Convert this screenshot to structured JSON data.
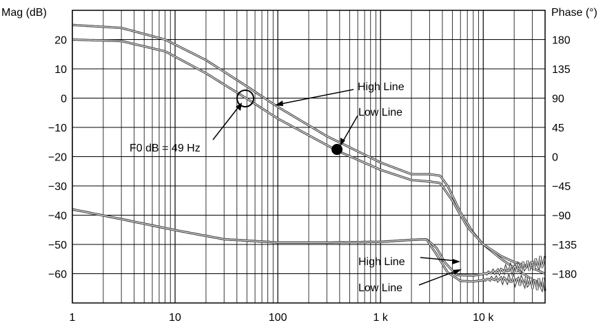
{
  "chart_data": {
    "type": "line",
    "title": "",
    "left_axis": {
      "label": "Mag (dB)",
      "ylim": [
        -70,
        30
      ],
      "ticks": [
        "20",
        "10",
        "0",
        "−10",
        "−20",
        "−30",
        "−40",
        "−50",
        "−60"
      ]
    },
    "right_axis": {
      "label": "Phase (°)",
      "ylim": [
        -225,
        225
      ],
      "ticks": [
        "180",
        "135",
        "90",
        "45",
        "0",
        "−45",
        "−90",
        "−135",
        "−180"
      ]
    },
    "x_axis": {
      "scale": "log",
      "xlim": [
        1,
        40000
      ],
      "ticks": [
        "1",
        "10",
        "100",
        "1 k",
        "10 k"
      ]
    },
    "grid": true,
    "series": [
      {
        "name": "High Line",
        "quantity": "magnitude",
        "points": [
          [
            1,
            25
          ],
          [
            3,
            24
          ],
          [
            8,
            20
          ],
          [
            20,
            13
          ],
          [
            50,
            4
          ],
          [
            100,
            -3
          ],
          [
            300,
            -13
          ],
          [
            1000,
            -22
          ],
          [
            2000,
            -26
          ],
          [
            3000,
            -26
          ],
          [
            3800,
            -26.5
          ],
          [
            4500,
            -30
          ],
          [
            6000,
            -39
          ],
          [
            8000,
            -46
          ],
          [
            10000,
            -50
          ],
          [
            15000,
            -55
          ],
          [
            20000,
            -58
          ],
          [
            30000,
            -62
          ],
          [
            40000,
            -64
          ]
        ]
      },
      {
        "name": "Low Line",
        "quantity": "magnitude",
        "points": [
          [
            1,
            20
          ],
          [
            3,
            19.5
          ],
          [
            8,
            16
          ],
          [
            20,
            8.5
          ],
          [
            49,
            0
          ],
          [
            100,
            -7
          ],
          [
            380,
            -18
          ],
          [
            1000,
            -24.5
          ],
          [
            2000,
            -28
          ],
          [
            3000,
            -28.5
          ],
          [
            3800,
            -29
          ],
          [
            5000,
            -35
          ],
          [
            7000,
            -44
          ],
          [
            10000,
            -50
          ],
          [
            15000,
            -54
          ],
          [
            20000,
            -56
          ],
          [
            30000,
            -58
          ],
          [
            40000,
            -60
          ]
        ]
      },
      {
        "name": "High Line",
        "quantity": "phase",
        "points": [
          [
            1,
            -81
          ],
          [
            3,
            -96
          ],
          [
            10,
            -113
          ],
          [
            30,
            -127
          ],
          [
            100,
            -132
          ],
          [
            300,
            -132
          ],
          [
            1000,
            -131
          ],
          [
            2000,
            -128
          ],
          [
            2800,
            -127
          ],
          [
            3500,
            -140
          ],
          [
            4200,
            -162
          ],
          [
            5500,
            -182
          ],
          [
            8000,
            -183
          ],
          [
            12000,
            -178
          ],
          [
            20000,
            -172
          ],
          [
            30000,
            -166
          ],
          [
            40000,
            -162
          ]
        ]
      },
      {
        "name": "Low Line",
        "quantity": "phase",
        "points": [
          [
            1,
            -81
          ],
          [
            3,
            -96
          ],
          [
            10,
            -113
          ],
          [
            30,
            -127
          ],
          [
            100,
            -132
          ],
          [
            300,
            -132
          ],
          [
            1000,
            -131
          ],
          [
            2000,
            -128
          ],
          [
            2800,
            -127
          ],
          [
            3500,
            -150
          ],
          [
            4500,
            -178
          ],
          [
            6000,
            -191
          ],
          [
            8000,
            -192
          ],
          [
            12000,
            -188
          ],
          [
            20000,
            -190
          ],
          [
            30000,
            -194
          ],
          [
            40000,
            -198
          ]
        ]
      }
    ],
    "annotations": [
      {
        "text": "High Line",
        "target": "magnitude"
      },
      {
        "text": "Low Line",
        "target": "magnitude"
      },
      {
        "text": "F0 dB = 49 Hz",
        "target": "crossover"
      },
      {
        "text": "High Line",
        "target": "phase"
      },
      {
        "text": "Low Line",
        "target": "phase"
      }
    ],
    "markers": [
      {
        "kind": "open-circle",
        "x": 49,
        "y": 0
      },
      {
        "kind": "filled-circle",
        "x": 380,
        "y": -18
      }
    ],
    "colors": {
      "trace": "#404040",
      "grid": "#000000",
      "background": "#ffffff"
    }
  }
}
